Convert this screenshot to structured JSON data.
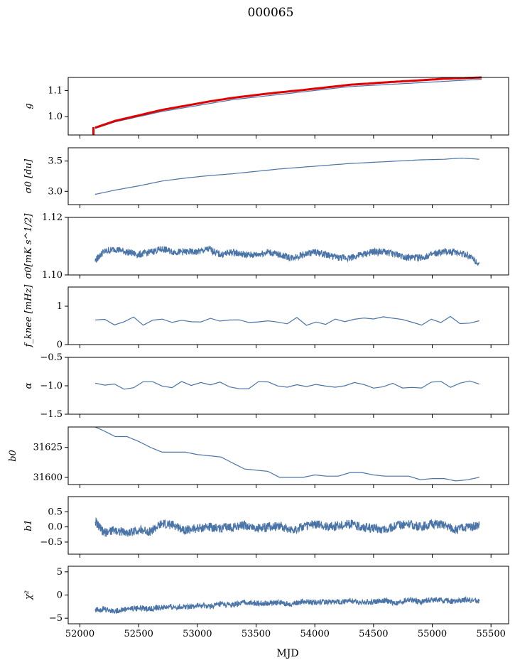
{
  "figure": {
    "suptitle": "000065",
    "xlabel": "MJD",
    "series_color": "#4a74a8",
    "highlight_color": "#e00000"
  },
  "chart_data": [
    {
      "type": "line",
      "ylabel": "g",
      "xlim": [
        51900,
        55650
      ],
      "ylim": [
        0.93,
        1.15
      ],
      "yticks": [
        "1.1",
        "1.0"
      ],
      "ytick_values": [
        1.1,
        1.0
      ],
      "xticks": [
        52000,
        52500,
        53000,
        53500,
        54000,
        54500,
        55000,
        55500
      ],
      "series": [
        {
          "color": "#4a74a8",
          "x": [
            52130,
            52300,
            52500,
            52700,
            52900,
            53100,
            53300,
            53500,
            53700,
            53900,
            54100,
            54300,
            54500,
            54700,
            54900,
            55100,
            55300,
            55420
          ],
          "y": [
            0.955,
            0.98,
            1.0,
            1.02,
            1.035,
            1.05,
            1.065,
            1.075,
            1.085,
            1.095,
            1.105,
            1.115,
            1.12,
            1.125,
            1.13,
            1.135,
            1.14,
            1.143
          ]
        },
        {
          "color": "#e00000",
          "x": [
            52130,
            52300,
            52500,
            52700,
            52900,
            53100,
            53300,
            53500,
            53700,
            53900,
            54100,
            54300,
            54500,
            54700,
            54900,
            55100,
            55300,
            55420
          ],
          "y": [
            0.958,
            0.984,
            1.005,
            1.026,
            1.042,
            1.058,
            1.072,
            1.083,
            1.093,
            1.102,
            1.112,
            1.122,
            1.128,
            1.134,
            1.139,
            1.145,
            1.148,
            1.15
          ]
        }
      ]
    },
    {
      "type": "line",
      "ylabel": "σ0 [du]",
      "xlim": [
        51900,
        55650
      ],
      "ylim": [
        2.78,
        3.72
      ],
      "yticks": [
        "3.5",
        "3.0"
      ],
      "ytick_values": [
        3.5,
        3.0
      ],
      "xticks": [
        52000,
        52500,
        53000,
        53500,
        54000,
        54500,
        55000,
        55500
      ],
      "series": [
        {
          "color": "#4a74a8",
          "x": [
            52130,
            52300,
            52500,
            52700,
            52900,
            53100,
            53300,
            53500,
            53700,
            53900,
            54100,
            54300,
            54500,
            54700,
            54900,
            55100,
            55250,
            55400
          ],
          "y": [
            2.95,
            3.02,
            3.09,
            3.17,
            3.22,
            3.26,
            3.29,
            3.33,
            3.37,
            3.4,
            3.43,
            3.46,
            3.48,
            3.5,
            3.52,
            3.53,
            3.55,
            3.53
          ]
        }
      ]
    },
    {
      "type": "line",
      "ylabel": "σ0[mK s^1/2]",
      "xlim": [
        51900,
        55650
      ],
      "ylim": [
        1.1,
        1.12
      ],
      "yticks": [
        "1.12",
        "1.10"
      ],
      "ytick_values": [
        1.12,
        1.1
      ],
      "xticks": [
        52000,
        52500,
        53000,
        53500,
        54000,
        54500,
        55000,
        55500
      ],
      "series": [
        {
          "color": "#4a74a8",
          "x": [
            52130,
            52200,
            52300,
            52400,
            52500,
            52600,
            52700,
            52800,
            52900,
            53000,
            53100,
            53200,
            53300,
            53400,
            53500,
            53600,
            53700,
            53800,
            53900,
            54000,
            54100,
            54200,
            54300,
            54400,
            54500,
            54600,
            54700,
            54800,
            54900,
            55000,
            55100,
            55200,
            55300,
            55400
          ],
          "y": [
            1.105,
            1.108,
            1.109,
            1.108,
            1.107,
            1.108,
            1.109,
            1.108,
            1.108,
            1.108,
            1.109,
            1.107,
            1.108,
            1.107,
            1.107,
            1.108,
            1.107,
            1.106,
            1.107,
            1.108,
            1.107,
            1.106,
            1.106,
            1.107,
            1.108,
            1.108,
            1.107,
            1.106,
            1.106,
            1.107,
            1.108,
            1.108,
            1.107,
            1.104
          ]
        }
      ]
    },
    {
      "type": "line",
      "ylabel": "f_knee [mHz]",
      "xlim": [
        51900,
        55650
      ],
      "ylim": [
        0,
        1.5
      ],
      "yticks": [
        "1",
        "0"
      ],
      "ytick_values": [
        1,
        0
      ],
      "xticks": [
        52000,
        52500,
        53000,
        53500,
        54000,
        54500,
        55000,
        55500
      ],
      "series": [
        {
          "color": "#4a74a8",
          "x": [
            52130,
            55400
          ],
          "y": [
            0.62,
            0.62
          ]
        }
      ]
    },
    {
      "type": "line",
      "ylabel": "α",
      "xlim": [
        51900,
        55650
      ],
      "ylim": [
        -1.5,
        -0.5
      ],
      "yticks": [
        "−0.5",
        "−1.0",
        "−1.5"
      ],
      "ytick_values": [
        -0.5,
        -1.0,
        -1.5
      ],
      "xticks": [
        52000,
        52500,
        53000,
        53500,
        54000,
        54500,
        55000,
        55500
      ],
      "series": [
        {
          "color": "#4a74a8",
          "x": [
            52130,
            55400
          ],
          "y": [
            -1.0,
            -0.97
          ]
        }
      ]
    },
    {
      "type": "line",
      "ylabel": "b0",
      "xlim": [
        51900,
        55650
      ],
      "ylim": [
        31594,
        31642
      ],
      "yticks": [
        "31625",
        "31600"
      ],
      "ytick_values": [
        31625,
        31600
      ],
      "xticks": [
        52000,
        52500,
        53000,
        53500,
        54000,
        54500,
        55000,
        55500
      ],
      "series": [
        {
          "color": "#4a74a8",
          "x": [
            52130,
            52200,
            52300,
            52400,
            52500,
            52600,
            52700,
            52800,
            52900,
            53000,
            53100,
            53200,
            53300,
            53400,
            53500,
            53600,
            53700,
            53800,
            53900,
            54000,
            54100,
            54200,
            54300,
            54400,
            54500,
            54600,
            54700,
            54800,
            54900,
            55000,
            55100,
            55200,
            55300,
            55400
          ],
          "y": [
            31642,
            31639,
            31634,
            31634,
            31630,
            31625,
            31621,
            31621,
            31621,
            31619,
            31618,
            31617,
            31612,
            31607,
            31606,
            31605,
            31600,
            31600,
            31600,
            31602,
            31601,
            31601,
            31604,
            31604,
            31602,
            31601,
            31601,
            31601,
            31598,
            31599,
            31599,
            31597,
            31598,
            31600
          ]
        }
      ]
    },
    {
      "type": "line",
      "ylabel": "b1",
      "xlim": [
        51900,
        55650
      ],
      "ylim": [
        -0.9,
        1.0
      ],
      "yticks": [
        "0.5",
        "0.0",
        "−0.5"
      ],
      "ytick_values": [
        0.5,
        0.0,
        -0.5
      ],
      "xticks": [
        52000,
        52500,
        53000,
        53500,
        54000,
        54500,
        55000,
        55500
      ],
      "series": [
        {
          "color": "#4a74a8",
          "x": [
            52130,
            52200,
            52300,
            52400,
            52500,
            52600,
            52700,
            52800,
            52900,
            53000,
            53100,
            53200,
            53300,
            53400,
            53500,
            53600,
            53700,
            53800,
            53900,
            54000,
            54100,
            54200,
            54300,
            54400,
            54500,
            54600,
            54700,
            54800,
            54900,
            55000,
            55100,
            55200,
            55300,
            55400
          ],
          "y": [
            0.2,
            -0.2,
            -0.1,
            -0.2,
            -0.1,
            -0.15,
            0.1,
            0.05,
            -0.1,
            -0.05,
            0.0,
            -0.05,
            0.0,
            0.05,
            -0.05,
            0.0,
            0.05,
            -0.1,
            0.0,
            0.1,
            0.0,
            0.05,
            0.1,
            0.0,
            -0.05,
            -0.1,
            0.05,
            0.1,
            0.0,
            0.1,
            0.05,
            -0.1,
            0.0,
            0.05
          ]
        }
      ]
    },
    {
      "type": "line",
      "ylabel": "χ²",
      "xlim": [
        51900,
        55650
      ],
      "ylim": [
        -6.2,
        6.2
      ],
      "yticks": [
        "5",
        "0",
        "−5"
      ],
      "ytick_values": [
        5,
        0,
        -5
      ],
      "xticks": [
        52000,
        52500,
        53000,
        53500,
        54000,
        54500,
        55000,
        55500
      ],
      "xticklabels": [
        "52000",
        "52500",
        "53000",
        "53500",
        "54000",
        "54500",
        "55000",
        "55500"
      ],
      "series": [
        {
          "color": "#4a74a8",
          "x": [
            52130,
            52200,
            52300,
            52400,
            52500,
            52600,
            52700,
            52800,
            52900,
            53000,
            53100,
            53200,
            53300,
            53400,
            53500,
            53600,
            53700,
            53800,
            53900,
            54000,
            54100,
            54200,
            54300,
            54400,
            54500,
            54600,
            54700,
            54800,
            54900,
            55000,
            55100,
            55200,
            55300,
            55400
          ],
          "y": [
            -3.2,
            -3.0,
            -3.5,
            -3.0,
            -2.8,
            -3.0,
            -2.7,
            -2.6,
            -2.5,
            -2.3,
            -2.5,
            -2.0,
            -2.2,
            -1.6,
            -1.8,
            -1.8,
            -1.6,
            -2.0,
            -1.4,
            -1.6,
            -1.4,
            -1.5,
            -1.2,
            -1.6,
            -1.4,
            -1.2,
            -1.8,
            -1.0,
            -1.5,
            -1.0,
            -1.2,
            -1.4,
            -1.0,
            -1.3
          ]
        }
      ]
    }
  ]
}
